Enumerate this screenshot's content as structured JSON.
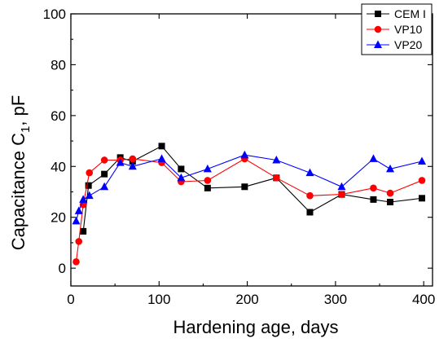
{
  "chart_data": {
    "type": "line",
    "title": "",
    "xlabel": "Hardening age, days",
    "ylabel_main": "Capacitance C",
    "ylabel_sub": "1",
    "ylabel_unit": ", pF",
    "xlim": [
      0,
      410
    ],
    "ylim": [
      -7,
      100
    ],
    "xticks": [
      0,
      100,
      200,
      300,
      400
    ],
    "yticks": [
      0,
      20,
      40,
      60,
      80,
      100
    ],
    "grid": false,
    "legend_position": "top-right",
    "series": [
      {
        "name": "CEM I",
        "color": "#000000",
        "marker": "square",
        "x": [
          14,
          20,
          38,
          56,
          70,
          103,
          125,
          155,
          197,
          233,
          271,
          307,
          343,
          362,
          398
        ],
        "y": [
          14.5,
          32.5,
          37,
          43.5,
          42,
          48,
          39,
          31.5,
          32,
          35.5,
          22,
          29,
          27,
          26,
          27.5
        ]
      },
      {
        "name": "VP10",
        "color": "#ff0000",
        "marker": "circle",
        "x": [
          6,
          9,
          14,
          21,
          38,
          56,
          70,
          103,
          125,
          155,
          197,
          233,
          271,
          307,
          343,
          362,
          398
        ],
        "y": [
          2.5,
          10.5,
          25,
          37.5,
          42.5,
          42.5,
          43,
          41.5,
          34,
          34.5,
          43,
          35.5,
          28.5,
          29,
          31.5,
          29.5,
          34.5
        ]
      },
      {
        "name": "VP20",
        "color": "#0000ff",
        "marker": "triangle",
        "x": [
          6,
          9,
          14,
          21,
          38,
          56,
          70,
          103,
          125,
          155,
          197,
          233,
          271,
          307,
          343,
          362,
          398
        ],
        "y": [
          18.5,
          22.5,
          27,
          28.5,
          32,
          41.5,
          40,
          43,
          35.5,
          39,
          44.5,
          42.5,
          37.5,
          32,
          43,
          39,
          42
        ]
      }
    ]
  }
}
